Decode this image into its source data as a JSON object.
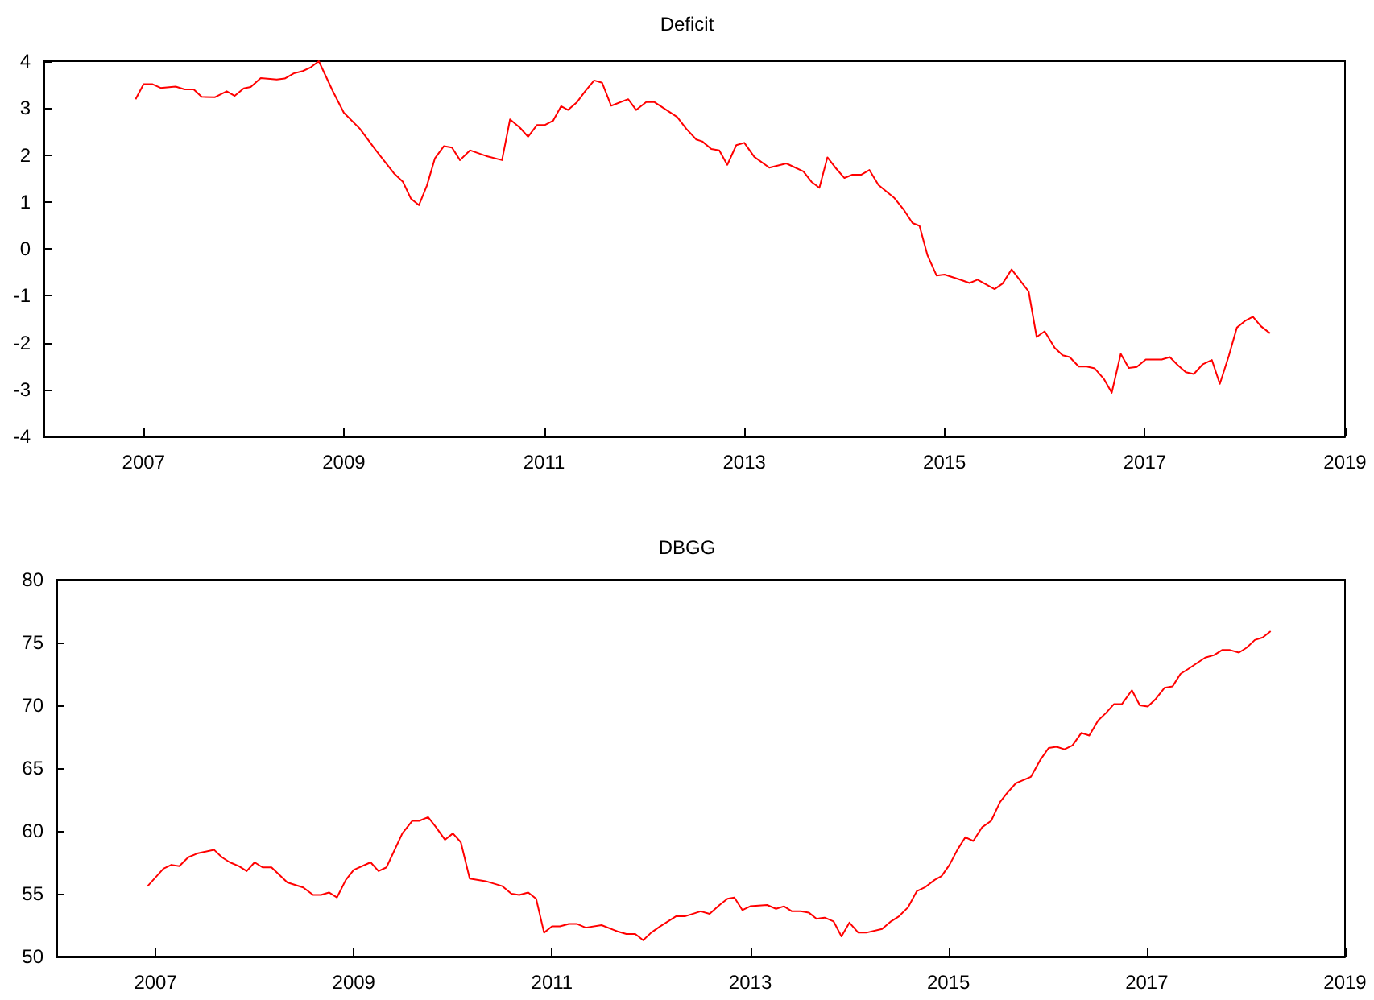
{
  "chart_data": [
    {
      "type": "line",
      "title": "Deficit",
      "color": "#ff0000",
      "xlim": [
        2006,
        2019
      ],
      "xticks": [
        2007,
        2009,
        2011,
        2013,
        2015,
        2017,
        2019
      ],
      "ylim": [
        -4,
        4
      ],
      "yticks": [
        -4,
        -3,
        -2,
        -1,
        0,
        1,
        2,
        3,
        4
      ],
      "x": [
        2006.92,
        2007.0,
        2007.09,
        2007.17,
        2007.32,
        2007.41,
        2007.5,
        2007.58,
        2007.71,
        2007.83,
        2007.91,
        2008.0,
        2008.07,
        2008.17,
        2008.33,
        2008.41,
        2008.5,
        2008.59,
        2008.67,
        2008.75,
        2008.89,
        2009.0,
        2009.16,
        2009.32,
        2009.5,
        2009.59,
        2009.67,
        2009.75,
        2009.83,
        2009.91,
        2010.0,
        2010.08,
        2010.16,
        2010.26,
        2010.42,
        2010.58,
        2010.66,
        2010.76,
        2010.84,
        2010.93,
        2011.01,
        2011.09,
        2011.17,
        2011.24,
        2011.33,
        2011.41,
        2011.5,
        2011.58,
        2011.67,
        2011.84,
        2011.92,
        2012.02,
        2012.1,
        2012.33,
        2012.42,
        2012.52,
        2012.58,
        2012.67,
        2012.75,
        2012.83,
        2012.92,
        2013.0,
        2013.1,
        2013.25,
        2013.42,
        2013.59,
        2013.67,
        2013.75,
        2013.83,
        2013.91,
        2014.0,
        2014.08,
        2014.17,
        2014.25,
        2014.34,
        2014.5,
        2014.59,
        2014.68,
        2014.75,
        2014.83,
        2014.92,
        2015.0,
        2015.16,
        2015.25,
        2015.33,
        2015.5,
        2015.58,
        2015.67,
        2015.76,
        2015.84,
        2015.92,
        2016.0,
        2016.1,
        2016.18,
        2016.25,
        2016.34,
        2016.42,
        2016.5,
        2016.59,
        2016.67,
        2016.76,
        2016.84,
        2016.92,
        2017.01,
        2017.17,
        2017.25,
        2017.33,
        2017.41,
        2017.49,
        2017.58,
        2017.67,
        2017.75,
        2017.84,
        2017.92,
        2018.0,
        2018.08,
        2018.16,
        2018.25
      ],
      "values": [
        3.19,
        3.51,
        3.51,
        3.43,
        3.46,
        3.4,
        3.4,
        3.24,
        3.23,
        3.36,
        3.26,
        3.42,
        3.45,
        3.64,
        3.61,
        3.63,
        3.74,
        3.79,
        3.87,
        4.0,
        3.36,
        2.9,
        2.56,
        2.1,
        1.61,
        1.43,
        1.07,
        0.93,
        1.35,
        1.93,
        2.19,
        2.16,
        1.89,
        2.1,
        1.98,
        1.89,
        2.76,
        2.58,
        2.39,
        2.64,
        2.64,
        2.73,
        3.04,
        2.96,
        3.13,
        3.36,
        3.59,
        3.54,
        3.05,
        3.19,
        2.96,
        3.13,
        3.13,
        2.81,
        2.56,
        2.33,
        2.29,
        2.13,
        2.1,
        1.79,
        2.21,
        2.26,
        1.96,
        1.73,
        1.82,
        1.65,
        1.43,
        1.3,
        1.95,
        1.73,
        1.51,
        1.58,
        1.58,
        1.68,
        1.36,
        1.08,
        0.84,
        0.55,
        0.49,
        -0.14,
        -0.57,
        -0.55,
        -0.66,
        -0.73,
        -0.66,
        -0.86,
        -0.74,
        -0.44,
        -0.69,
        -0.91,
        -1.88,
        -1.76,
        -2.11,
        -2.27,
        -2.31,
        -2.51,
        -2.51,
        -2.55,
        -2.77,
        -3.07,
        -2.24,
        -2.54,
        -2.52,
        -2.36,
        -2.36,
        -2.31,
        -2.48,
        -2.63,
        -2.67,
        -2.46,
        -2.37,
        -2.88,
        -2.28,
        -1.68,
        -1.54,
        -1.45,
        -1.65,
        -1.8
      ]
    },
    {
      "type": "line",
      "title": "DBGG",
      "color": "#ff0000",
      "xlim": [
        2006,
        2019
      ],
      "xticks": [
        2007,
        2009,
        2011,
        2013,
        2015,
        2017,
        2019
      ],
      "ylim": [
        50,
        80
      ],
      "yticks": [
        50,
        55,
        60,
        65,
        70,
        75,
        80
      ],
      "x": [
        2006.92,
        2007.08,
        2007.16,
        2007.24,
        2007.33,
        2007.42,
        2007.59,
        2007.67,
        2007.75,
        2007.84,
        2007.92,
        2008.0,
        2008.08,
        2008.17,
        2008.33,
        2008.49,
        2008.59,
        2008.67,
        2008.75,
        2008.83,
        2008.92,
        2009.0,
        2009.17,
        2009.25,
        2009.33,
        2009.49,
        2009.59,
        2009.66,
        2009.75,
        2009.83,
        2009.92,
        2010.0,
        2010.08,
        2010.17,
        2010.33,
        2010.5,
        2010.59,
        2010.67,
        2010.76,
        2010.84,
        2010.92,
        2011.0,
        2011.08,
        2011.17,
        2011.25,
        2011.34,
        2011.5,
        2011.66,
        2011.75,
        2011.84,
        2011.92,
        2012.0,
        2012.09,
        2012.25,
        2012.34,
        2012.5,
        2012.59,
        2012.69,
        2012.77,
        2012.84,
        2012.92,
        2013.0,
        2013.17,
        2013.26,
        2013.34,
        2013.42,
        2013.51,
        2013.59,
        2013.67,
        2013.75,
        2013.84,
        2013.92,
        2014.0,
        2014.09,
        2014.17,
        2014.33,
        2014.42,
        2014.5,
        2014.59,
        2014.68,
        2014.76,
        2014.86,
        2014.93,
        2015.01,
        2015.09,
        2015.17,
        2015.25,
        2015.34,
        2015.43,
        2015.52,
        2015.59,
        2015.68,
        2015.83,
        2015.93,
        2016.01,
        2016.09,
        2016.17,
        2016.25,
        2016.34,
        2016.42,
        2016.51,
        2016.59,
        2016.67,
        2016.75,
        2016.85,
        2016.93,
        2017.01,
        2017.09,
        2017.18,
        2017.26,
        2017.34,
        2017.42,
        2017.59,
        2017.68,
        2017.76,
        2017.84,
        2017.93,
        2018.01,
        2018.09,
        2018.17,
        2018.25
      ],
      "values": [
        55.6,
        57.0,
        57.3,
        57.2,
        57.9,
        58.2,
        58.5,
        57.9,
        57.5,
        57.2,
        56.8,
        57.5,
        57.1,
        57.1,
        55.9,
        55.5,
        54.9,
        54.9,
        55.1,
        54.7,
        56.1,
        56.9,
        57.5,
        56.8,
        57.1,
        59.8,
        60.8,
        60.8,
        61.1,
        60.3,
        59.3,
        59.8,
        59.1,
        56.2,
        56.0,
        55.6,
        55.0,
        54.9,
        55.1,
        54.6,
        51.9,
        52.4,
        52.4,
        52.6,
        52.6,
        52.3,
        52.5,
        52.0,
        51.8,
        51.8,
        51.3,
        51.9,
        52.4,
        53.2,
        53.2,
        53.6,
        53.4,
        54.1,
        54.6,
        54.7,
        53.7,
        54.0,
        54.1,
        53.8,
        54.0,
        53.6,
        53.6,
        53.5,
        53.0,
        53.1,
        52.8,
        51.6,
        52.7,
        51.9,
        51.9,
        52.2,
        52.8,
        53.2,
        53.9,
        55.2,
        55.5,
        56.1,
        56.4,
        57.3,
        58.5,
        59.5,
        59.2,
        60.3,
        60.8,
        62.3,
        63.0,
        63.8,
        64.3,
        65.7,
        66.6,
        66.7,
        66.5,
        66.8,
        67.8,
        67.6,
        68.8,
        69.4,
        70.1,
        70.1,
        71.2,
        70.0,
        69.9,
        70.5,
        71.4,
        71.5,
        72.5,
        72.9,
        73.8,
        74.0,
        74.4,
        74.4,
        74.2,
        74.6,
        75.2,
        75.4,
        75.9
      ]
    }
  ]
}
